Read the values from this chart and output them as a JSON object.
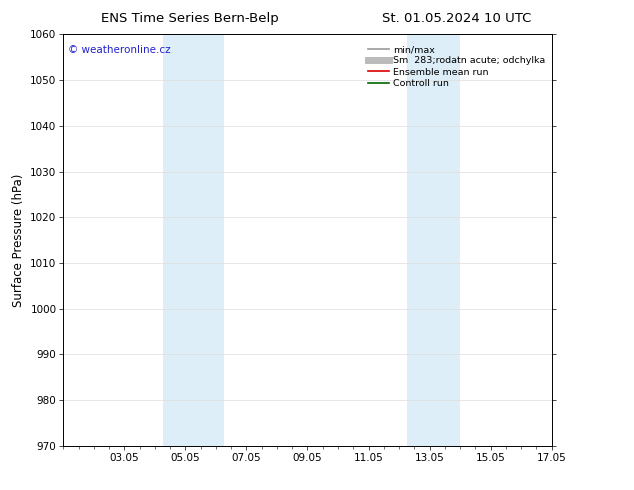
{
  "title_left": "ENS Time Series Bern-Belp",
  "title_right": "St. 01.05.2024 10 UTC",
  "ylabel": "Surface Pressure (hPa)",
  "ylim": [
    970,
    1060
  ],
  "yticks": [
    970,
    980,
    990,
    1000,
    1010,
    1020,
    1030,
    1040,
    1050,
    1060
  ],
  "xlim": [
    0.0,
    16.0
  ],
  "xtick_labels": [
    "03.05",
    "05.05",
    "07.05",
    "09.05",
    "11.05",
    "13.05",
    "15.05",
    "17.05"
  ],
  "xtick_positions": [
    2.0,
    4.0,
    6.0,
    8.0,
    10.0,
    12.0,
    14.0,
    16.0
  ],
  "shaded_bands": [
    {
      "x_start": 3.25,
      "x_end": 5.25,
      "color": "#ddeef8"
    },
    {
      "x_start": 11.25,
      "x_end": 13.0,
      "color": "#ddeef8"
    }
  ],
  "watermark_text": "© weatheronline.cz",
  "watermark_color": "#2222cc",
  "legend_entries": [
    {
      "label": "min/max",
      "color": "#999999",
      "lw": 1.2,
      "style": "solid"
    },
    {
      "label": "Sm  283;rodatn acute; odchylka",
      "color": "#bbbbbb",
      "lw": 5,
      "style": "solid"
    },
    {
      "label": "Ensemble mean run",
      "color": "#dd0000",
      "lw": 1.2,
      "style": "solid"
    },
    {
      "label": "Controll run",
      "color": "#006600",
      "lw": 1.2,
      "style": "solid"
    }
  ],
  "bg_color": "#ffffff",
  "plot_bg_color": "#ffffff",
  "grid_color": "#dddddd",
  "tick_label_size": 7.5,
  "axis_label_size": 8.5,
  "title_size": 9.5,
  "legend_fontsize": 6.8
}
